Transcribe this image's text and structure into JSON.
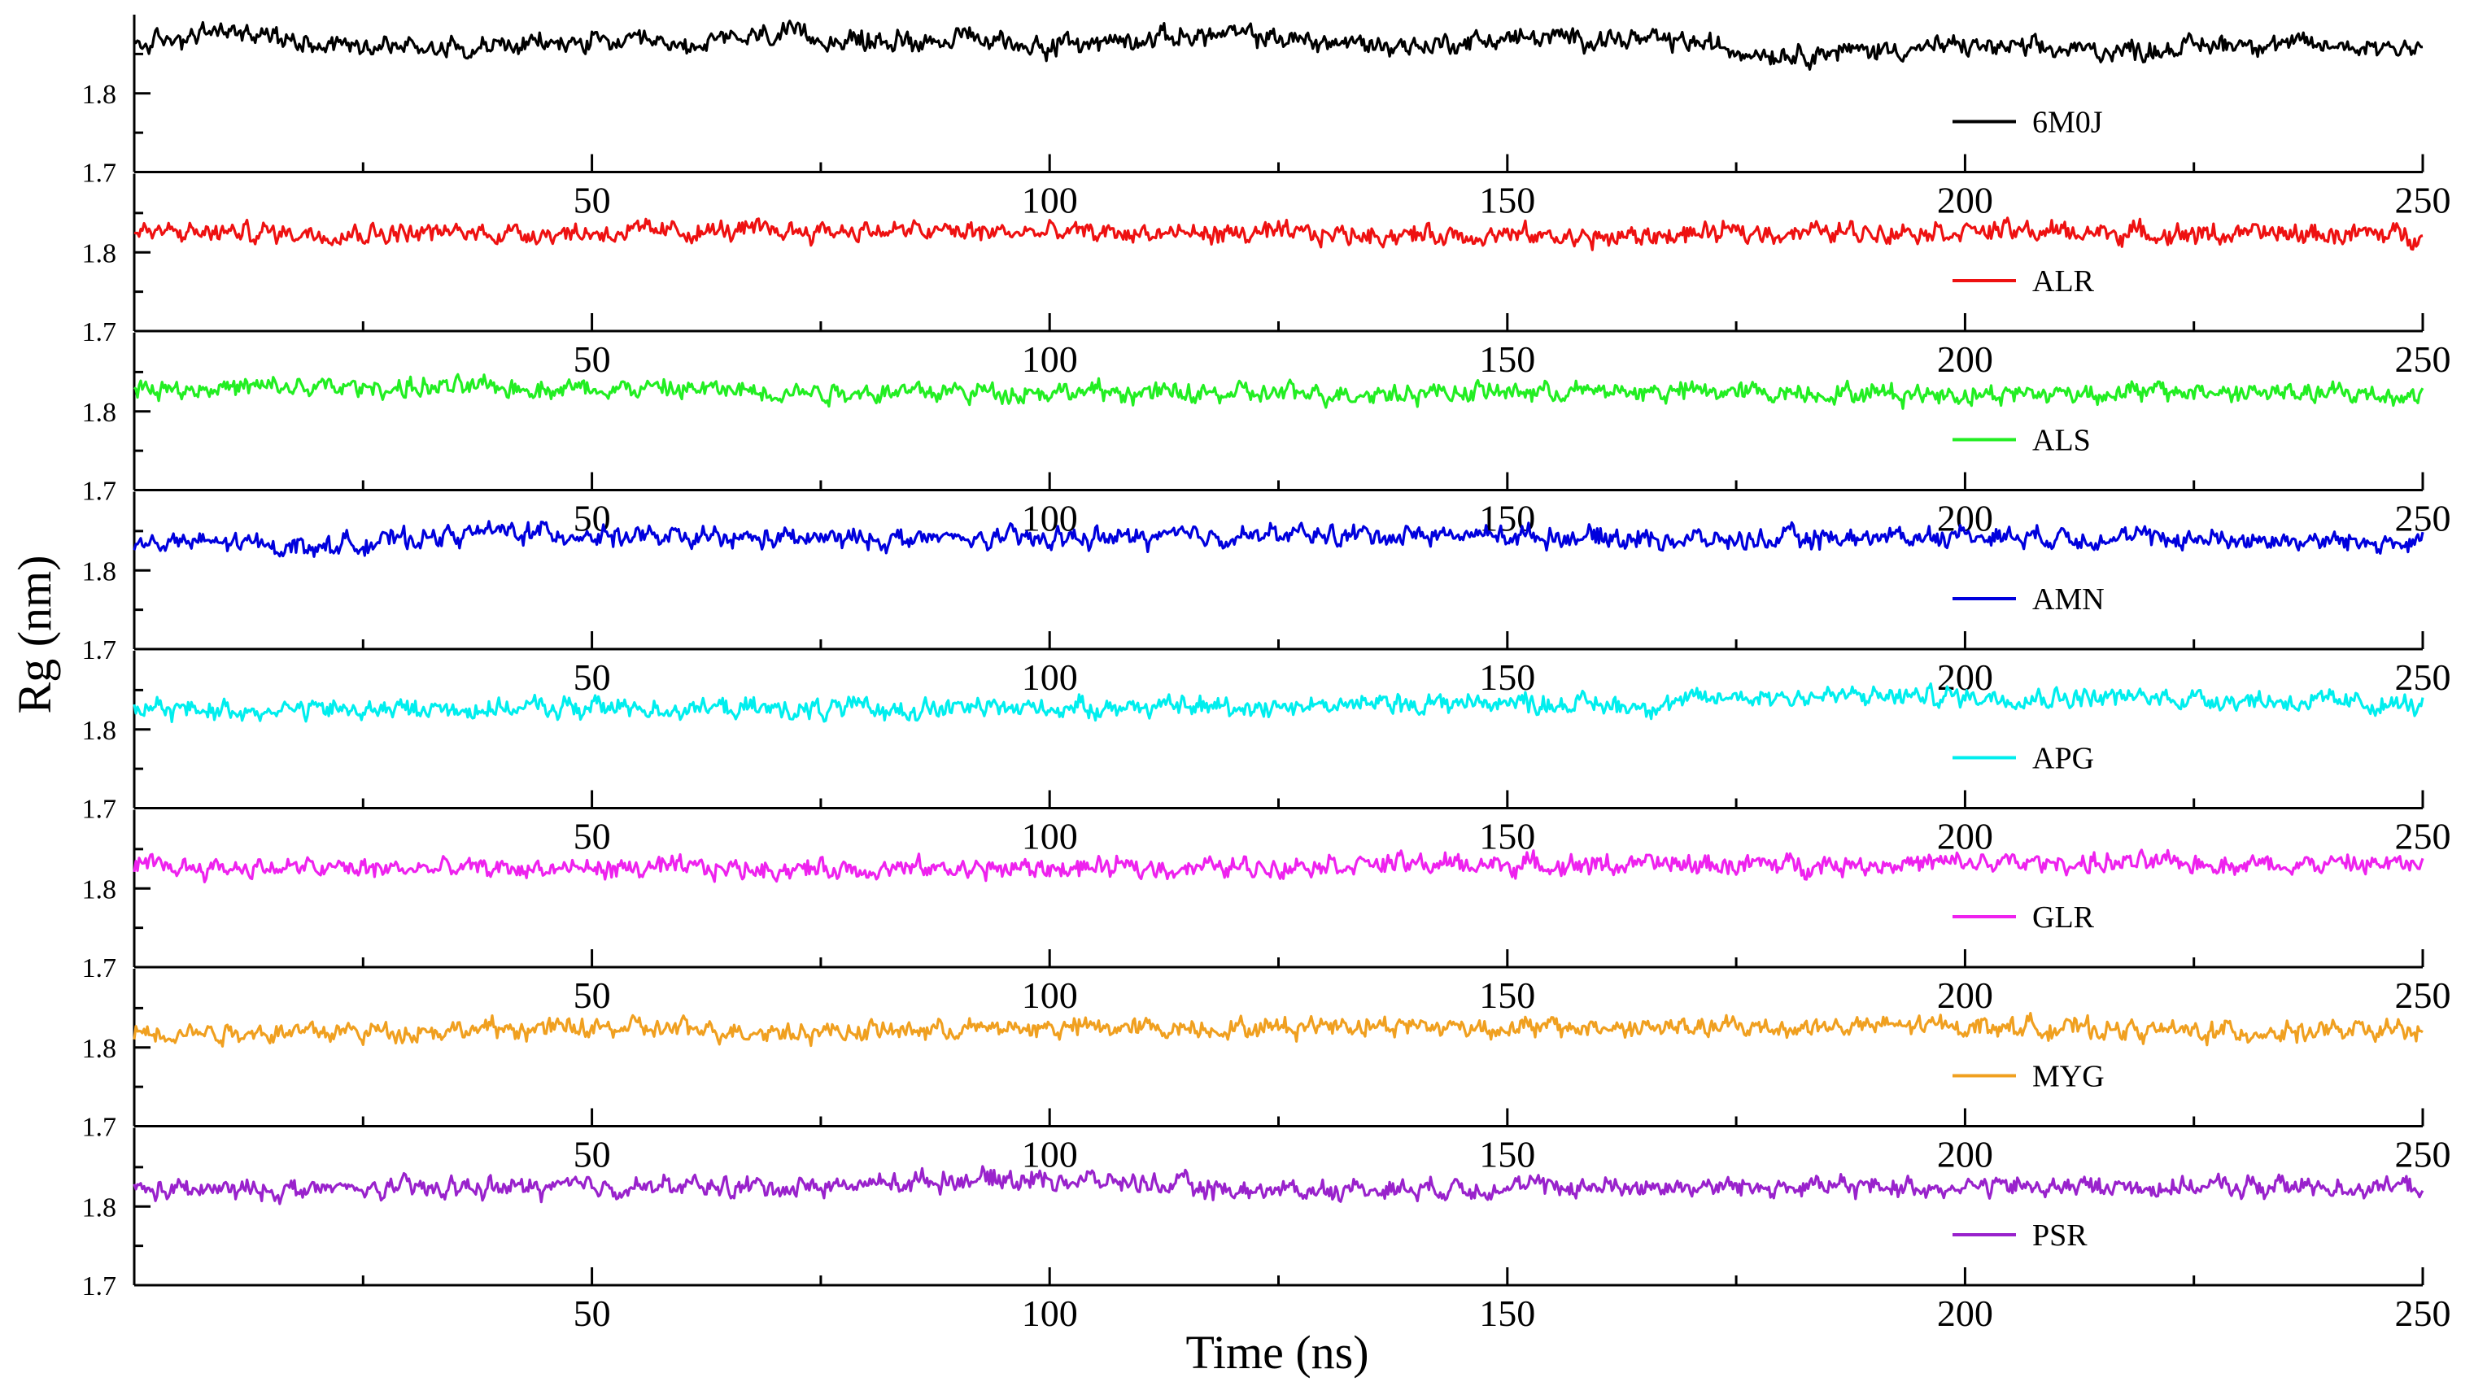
{
  "chart_data": {
    "type": "line",
    "title": "",
    "xlabel": "Time (ns)",
    "ylabel": "Rg (nm)",
    "xlim": [
      0,
      250
    ],
    "ylim": [
      1.7,
      1.9
    ],
    "xticks": [
      50,
      100,
      150,
      200,
      250
    ],
    "xtick_labels": [
      "50",
      "100",
      "150",
      "200",
      "250"
    ],
    "yticks": [
      1.7,
      1.8
    ],
    "ytick_labels": [
      "1.7",
      "1.8"
    ],
    "layout": "8 stacked panels sharing the time axis",
    "legend_position": "lower-right of each panel",
    "series": [
      {
        "name": "6M0J",
        "color": "#000000",
        "x": [
          0,
          10,
          20,
          30,
          40,
          50,
          60,
          70,
          80,
          90,
          100,
          110,
          120,
          130,
          140,
          150,
          160,
          170,
          175,
          180,
          190,
          200,
          210,
          220,
          230,
          240,
          250
        ],
        "values": [
          1.86,
          1.88,
          1.865,
          1.86,
          1.86,
          1.865,
          1.86,
          1.875,
          1.865,
          1.87,
          1.86,
          1.87,
          1.875,
          1.865,
          1.86,
          1.87,
          1.87,
          1.865,
          1.855,
          1.85,
          1.855,
          1.86,
          1.855,
          1.855,
          1.865,
          1.86,
          1.86
        ]
      },
      {
        "name": "ALR",
        "color": "#ee1111",
        "x": [
          0,
          25,
          50,
          75,
          100,
          125,
          150,
          160,
          175,
          200,
          225,
          250
        ],
        "values": [
          1.825,
          1.825,
          1.825,
          1.828,
          1.825,
          1.823,
          1.822,
          1.818,
          1.825,
          1.828,
          1.823,
          1.823
        ]
      },
      {
        "name": "ALS",
        "color": "#22ee22",
        "x": [
          0,
          25,
          50,
          75,
          100,
          120,
          150,
          175,
          200,
          225,
          250
        ],
        "values": [
          1.83,
          1.83,
          1.83,
          1.825,
          1.825,
          1.822,
          1.825,
          1.825,
          1.822,
          1.825,
          1.82
        ]
      },
      {
        "name": "AMN",
        "color": "#0000dd",
        "x": [
          0,
          10,
          20,
          30,
          40,
          50,
          60,
          75,
          100,
          125,
          150,
          175,
          200,
          225,
          250
        ],
        "values": [
          1.835,
          1.835,
          1.83,
          1.84,
          1.85,
          1.845,
          1.84,
          1.84,
          1.84,
          1.845,
          1.845,
          1.838,
          1.845,
          1.84,
          1.835
        ]
      },
      {
        "name": "APG",
        "color": "#00eeee",
        "x": [
          0,
          25,
          50,
          75,
          100,
          125,
          150,
          165,
          175,
          200,
          225,
          250
        ],
        "values": [
          1.825,
          1.825,
          1.828,
          1.825,
          1.828,
          1.83,
          1.835,
          1.83,
          1.842,
          1.842,
          1.84,
          1.83
        ]
      },
      {
        "name": "GLR",
        "color": "#ee22ee",
        "x": [
          0,
          25,
          50,
          75,
          100,
          125,
          130,
          150,
          175,
          200,
          225,
          250
        ],
        "values": [
          1.828,
          1.825,
          1.825,
          1.825,
          1.825,
          1.828,
          1.832,
          1.83,
          1.83,
          1.832,
          1.832,
          1.83
        ]
      },
      {
        "name": "MYG",
        "color": "#f0a020",
        "x": [
          0,
          25,
          50,
          75,
          100,
          125,
          130,
          150,
          175,
          200,
          225,
          250
        ],
        "values": [
          1.82,
          1.82,
          1.825,
          1.82,
          1.825,
          1.825,
          1.83,
          1.825,
          1.825,
          1.828,
          1.82,
          1.82
        ]
      },
      {
        "name": "PSR",
        "color": "#9922cc",
        "x": [
          0,
          25,
          50,
          75,
          90,
          100,
          110,
          120,
          150,
          175,
          200,
          225,
          250
        ],
        "values": [
          1.82,
          1.822,
          1.825,
          1.825,
          1.835,
          1.835,
          1.83,
          1.82,
          1.825,
          1.825,
          1.825,
          1.825,
          1.825
        ]
      }
    ]
  }
}
